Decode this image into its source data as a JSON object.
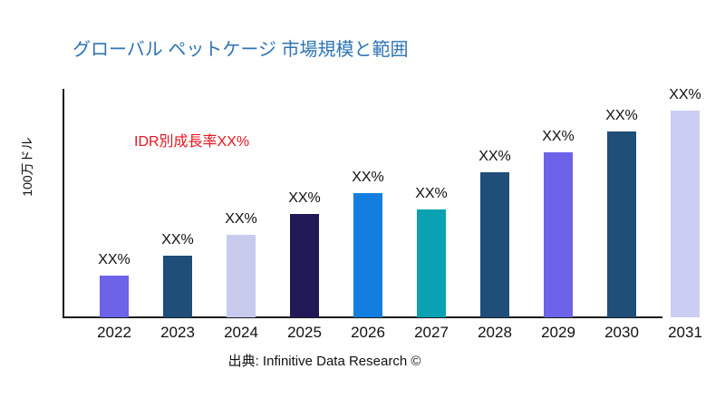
{
  "title": "グローバル ペットケージ 市場規模と範囲",
  "annotation": {
    "text": "IDR別成長率XX%",
    "color": "#E8151D"
  },
  "source": "出典: Infinitive Data Research ©",
  "colors": {
    "title": "#2E74B5",
    "axis": "#1a1a1a",
    "background": "#ffffff",
    "label_text": "#111111"
  },
  "chart_data": {
    "type": "bar",
    "title": "グローバル ペットケージ 市場規模と範囲",
    "categories": [
      "2022",
      "2023",
      "2024",
      "2025",
      "2026",
      "2027",
      "2028",
      "2029",
      "2030",
      "2031"
    ],
    "values": [
      20,
      30,
      40,
      50,
      60,
      52,
      70,
      80,
      90,
      100
    ],
    "values_unit": "relative height, % of tallest bar (actual figures masked as XX% in chart)",
    "value_labels": [
      "XX%",
      "XX%",
      "XX%",
      "XX%",
      "XX%",
      "XX%",
      "XX%",
      "XX%",
      "XX%",
      "XX%"
    ],
    "bar_colors": [
      "#6C63E8",
      "#1F4E79",
      "#C9CBEE",
      "#211956",
      "#137EE0",
      "#0AA2B2",
      "#1F4E79",
      "#6C63E8",
      "#1F4E79",
      "#CBCDF2"
    ],
    "xlabel": "",
    "ylabel": "100万ドル",
    "ylim": [
      0,
      110
    ],
    "grid": false,
    "legend": false,
    "annotation": "IDR別成長率XX%"
  }
}
